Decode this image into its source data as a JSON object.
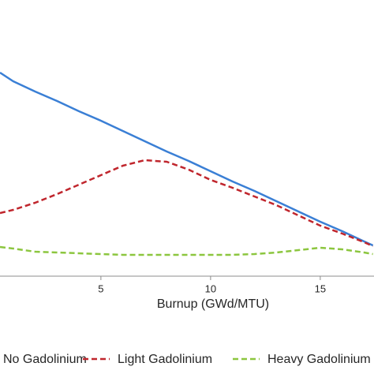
{
  "chart_data": {
    "type": "line",
    "x_label": "Burnup (GWd/MTU)",
    "x": [
      0.4,
      1,
      2,
      3,
      4,
      5,
      6,
      7,
      8,
      9,
      10,
      11,
      12,
      13,
      14,
      15,
      16,
      17,
      17.4
    ],
    "xlim": [
      0.4,
      17.45
    ],
    "xticks": [
      5,
      10,
      15
    ],
    "ylim": [
      0,
      350
    ],
    "series": [
      {
        "name": "No Gadolinium",
        "color": "#3a7fd5",
        "dash": "solid",
        "values": [
          258,
          247,
          234,
          222,
          209,
          197,
          184,
          171,
          158,
          146,
          133,
          120,
          108,
          95,
          82,
          69,
          57,
          44,
          39
        ]
      },
      {
        "name": "Light Gadolinium",
        "color": "#c0262d",
        "dash": "dashed",
        "values": [
          80,
          84,
          93,
          104,
          116,
          128,
          140,
          147,
          145,
          135,
          122,
          112,
          101,
          90,
          77,
          64,
          54,
          43,
          38
        ]
      },
      {
        "name": "Heavy Gadolinium",
        "color": "#8cc63f",
        "dash": "dashed",
        "values": [
          37,
          35,
          31,
          30,
          29,
          28,
          27,
          27,
          27,
          27,
          27,
          27,
          28,
          30,
          33,
          36,
          34,
          30,
          28
        ]
      }
    ]
  }
}
